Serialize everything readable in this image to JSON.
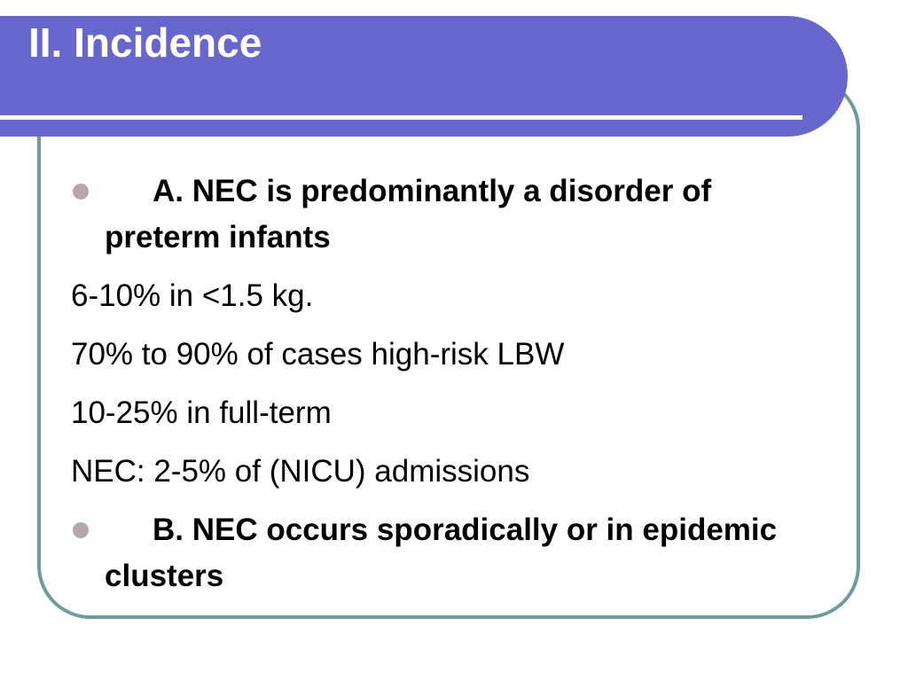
{
  "slide": {
    "title": "II. Incidence",
    "bullets": {
      "a": "A. NEC is predominantly a disorder of preterm infants",
      "b": "B. NEC occurs sporadically or in epidemic clusters"
    },
    "lines": [
      "6-10% in <1.5 kg.",
      "70% to 90% of cases high-risk LBW",
      "10-25% in full-term",
      "NEC: 2-5% of (NICU) admissions"
    ]
  },
  "colors": {
    "banner": "#6666cc",
    "frame_border": "#6f9c9a",
    "bullet": "#b3a9ac"
  }
}
